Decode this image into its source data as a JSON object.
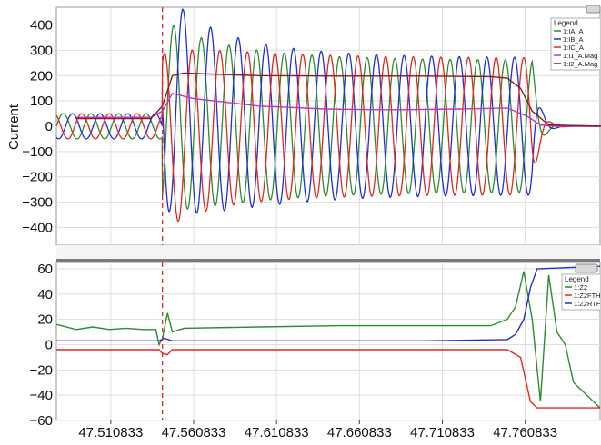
{
  "chart_data": [
    {
      "type": "line",
      "ylabel": "Current",
      "ylim": [
        -470,
        470
      ],
      "yticks": [
        -400,
        -300,
        -200,
        -100,
        0,
        100,
        200,
        300,
        400
      ],
      "fault_marker_x": 47.542,
      "legend": {
        "title": "Legend",
        "placement": "top-right",
        "items": [
          {
            "name": "1:IA_A",
            "color": "#2e8b2e"
          },
          {
            "name": "1:IB_A",
            "color": "#1f2fd6"
          },
          {
            "name": "1:IC_A",
            "color": "#e0281e"
          },
          {
            "name": "1:I1_A.Mag",
            "color": "#c030c8"
          },
          {
            "name": "1:I2_A.Mag",
            "color": "#8b1a1a"
          }
        ]
      },
      "series": [
        {
          "name": "1:IA_A",
          "color": "#2e8b2e",
          "pre_fault_amplitude": 50,
          "post_fault_peak": 380,
          "steady_amplitude": 260
        },
        {
          "name": "1:IB_A",
          "color": "#1f2fd6",
          "pre_fault_amplitude": 50,
          "post_fault_peak": 440,
          "steady_amplitude": 270
        },
        {
          "name": "1:IC_A",
          "color": "#e0281e",
          "pre_fault_amplitude": 50,
          "post_fault_peak": 350,
          "steady_amplitude": 270
        },
        {
          "name": "1:I1_A.Mag",
          "x": [
            47.49,
            47.535,
            47.542,
            47.548,
            47.56,
            47.6,
            47.64,
            47.68,
            47.72,
            47.75,
            47.762,
            47.77,
            47.78,
            47.81
          ],
          "y": [
            35,
            35,
            60,
            130,
            110,
            80,
            68,
            65,
            68,
            72,
            40,
            5,
            0,
            0
          ]
        },
        {
          "name": "1:I2_A.Mag",
          "x": [
            47.49,
            47.535,
            47.542,
            47.548,
            47.555,
            47.6,
            47.65,
            47.7,
            47.74,
            47.75,
            47.758,
            47.765,
            47.775,
            47.81
          ],
          "y": [
            30,
            30,
            80,
            200,
            210,
            200,
            198,
            198,
            196,
            190,
            150,
            60,
            5,
            0
          ]
        }
      ]
    },
    {
      "type": "line",
      "ylim": [
        -60,
        65
      ],
      "yticks": [
        -60,
        -40,
        -20,
        0,
        20,
        40,
        60
      ],
      "xticks": [
        47.510833,
        47.560833,
        47.610833,
        47.660833,
        47.710833,
        47.760833
      ],
      "xtick_labels": [
        "47.510833",
        "47.560833",
        "47.610833",
        "47.660833",
        "47.710833",
        "47.760833"
      ],
      "xlim": [
        47.478,
        47.806
      ],
      "fault_marker_x": 47.542,
      "legend": {
        "title": "Legend",
        "placement": "top-right",
        "items": [
          {
            "name": "1:Z2",
            "color": "#2e8b2e"
          },
          {
            "name": "1:Z2FTH",
            "color": "#e0281e"
          },
          {
            "name": "1:Z2RTH",
            "color": "#1f2fd6"
          }
        ]
      },
      "series": [
        {
          "name": "1:Z2",
          "color": "#2e8b2e",
          "x": [
            47.478,
            47.49,
            47.5,
            47.51,
            47.52,
            47.53,
            47.538,
            47.54,
            47.542,
            47.545,
            47.548,
            47.555,
            47.6,
            47.65,
            47.7,
            47.74,
            47.75,
            47.755,
            47.76,
            47.765,
            47.77,
            47.775,
            47.78,
            47.785,
            47.79,
            47.806
          ],
          "y": [
            16,
            12,
            14,
            12,
            13,
            12,
            12,
            0,
            5,
            25,
            10,
            13,
            14,
            15,
            15,
            15,
            20,
            30,
            58,
            20,
            -45,
            55,
            10,
            0,
            -30,
            -50
          ]
        },
        {
          "name": "1:Z2FTH",
          "color": "#e0281e",
          "x": [
            47.478,
            47.54,
            47.542,
            47.545,
            47.548,
            47.6,
            47.7,
            47.75,
            47.758,
            47.764,
            47.768,
            47.78,
            47.806
          ],
          "y": [
            -4,
            -4,
            -7,
            -8,
            -4,
            -4,
            -4,
            -4,
            -10,
            -45,
            -50,
            -50,
            -50
          ]
        },
        {
          "name": "1:Z2RTH",
          "color": "#1f2fd6",
          "x": [
            47.478,
            47.54,
            47.543,
            47.548,
            47.6,
            47.7,
            47.75,
            47.755,
            47.76,
            47.764,
            47.768,
            47.806
          ],
          "y": [
            3,
            3,
            5,
            3,
            3,
            3,
            4,
            8,
            20,
            45,
            60,
            62
          ]
        }
      ]
    }
  ]
}
